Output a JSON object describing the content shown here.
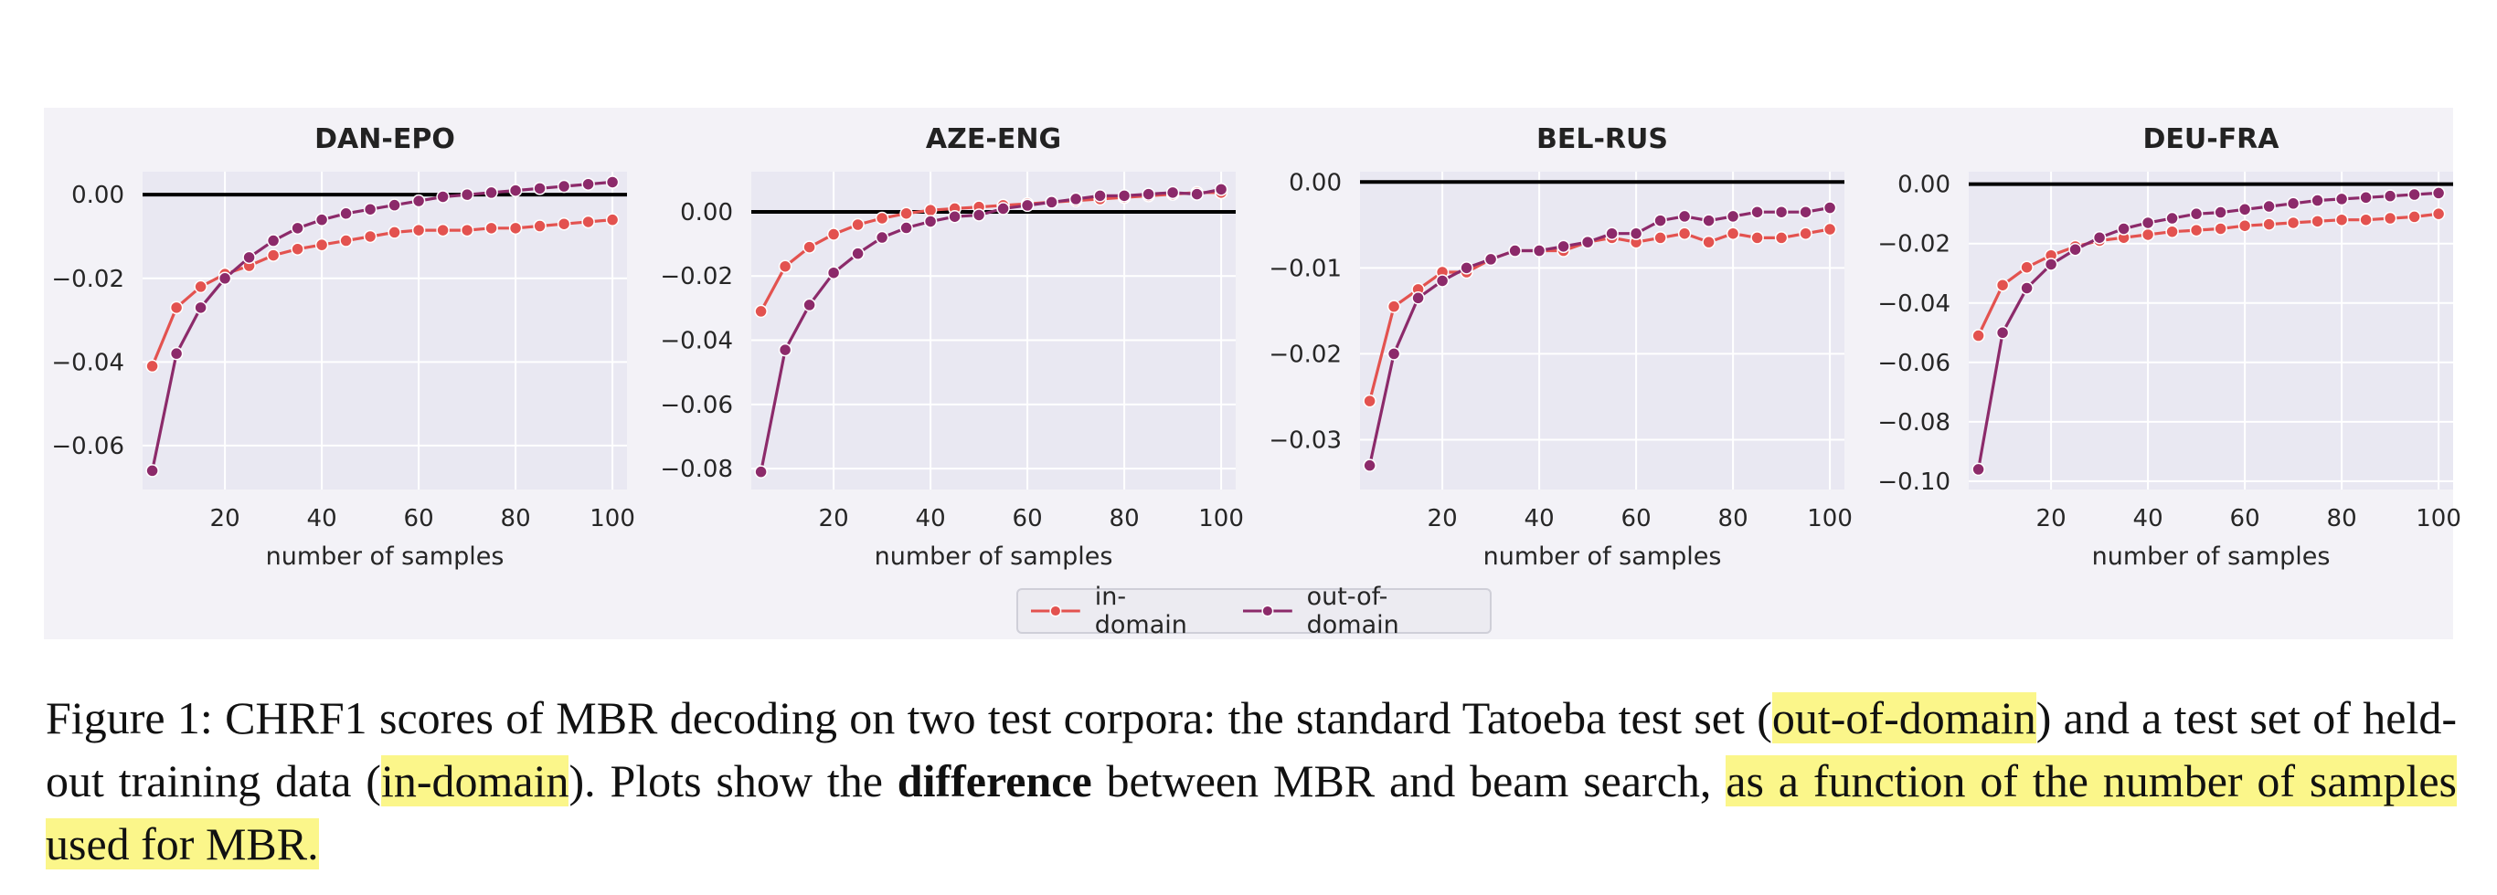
{
  "chart_data": [
    {
      "type": "line",
      "title": "DAN-EPO",
      "xlabel": "number of samples",
      "ylabel": "",
      "xlim": [
        3,
        103
      ],
      "ylim": [
        -0.0705,
        0.0055
      ],
      "xticks": [
        20,
        40,
        60,
        80,
        100
      ],
      "yticks": [
        0.0,
        -0.02,
        -0.04,
        -0.06
      ],
      "ytick_labels": [
        "0.00",
        "−0.02",
        "−0.04",
        "−0.06"
      ],
      "reference_line": 0,
      "grid": true,
      "x": [
        5,
        10,
        15,
        20,
        25,
        30,
        35,
        40,
        45,
        50,
        55,
        60,
        65,
        70,
        75,
        80,
        85,
        90,
        95,
        100
      ],
      "series": [
        {
          "name": "in-domain",
          "values": [
            -0.041,
            -0.027,
            -0.022,
            -0.019,
            -0.017,
            -0.0145,
            -0.013,
            -0.012,
            -0.011,
            -0.01,
            -0.009,
            -0.0085,
            -0.0085,
            -0.0085,
            -0.008,
            -0.008,
            -0.0075,
            -0.007,
            -0.0065,
            -0.006
          ]
        },
        {
          "name": "out-of-domain",
          "values": [
            -0.066,
            -0.038,
            -0.027,
            -0.02,
            -0.015,
            -0.011,
            -0.008,
            -0.006,
            -0.0045,
            -0.0035,
            -0.0025,
            -0.0015,
            -0.0005,
            0.0,
            0.0005,
            0.001,
            0.0015,
            0.002,
            0.0025,
            0.003
          ]
        }
      ]
    },
    {
      "type": "line",
      "title": "AZE-ENG",
      "xlabel": "number of samples",
      "ylabel": "",
      "xlim": [
        3,
        103
      ],
      "ylim": [
        -0.0865,
        0.0125
      ],
      "xticks": [
        20,
        40,
        60,
        80,
        100
      ],
      "yticks": [
        0.0,
        -0.02,
        -0.04,
        -0.06,
        -0.08
      ],
      "ytick_labels": [
        "0.00",
        "−0.02",
        "−0.04",
        "−0.06",
        "−0.08"
      ],
      "reference_line": 0,
      "grid": true,
      "x": [
        5,
        10,
        15,
        20,
        25,
        30,
        35,
        40,
        45,
        50,
        55,
        60,
        65,
        70,
        75,
        80,
        85,
        90,
        95,
        100
      ],
      "series": [
        {
          "name": "in-domain",
          "values": [
            -0.031,
            -0.017,
            -0.011,
            -0.007,
            -0.004,
            -0.002,
            -0.0005,
            0.0005,
            0.001,
            0.0015,
            0.002,
            0.0025,
            0.003,
            0.0035,
            0.004,
            0.0045,
            0.005,
            0.0055,
            0.006,
            0.006
          ]
        },
        {
          "name": "out-of-domain",
          "values": [
            -0.081,
            -0.043,
            -0.029,
            -0.019,
            -0.013,
            -0.008,
            -0.005,
            -0.003,
            -0.0015,
            -0.001,
            0.001,
            0.002,
            0.003,
            0.004,
            0.005,
            0.005,
            0.0055,
            0.006,
            0.0055,
            0.007
          ]
        }
      ]
    },
    {
      "type": "line",
      "title": "BEL-RUS",
      "xlabel": "number of samples",
      "ylabel": "",
      "xlim": [
        3,
        103
      ],
      "ylim": [
        -0.0358,
        0.0012
      ],
      "xticks": [
        20,
        40,
        60,
        80,
        100
      ],
      "yticks": [
        0.0,
        -0.01,
        -0.02,
        -0.03
      ],
      "ytick_labels": [
        "0.00",
        "−0.01",
        "−0.02",
        "−0.03"
      ],
      "reference_line": 0,
      "grid": true,
      "x": [
        5,
        10,
        15,
        20,
        25,
        30,
        35,
        40,
        45,
        50,
        55,
        60,
        65,
        70,
        75,
        80,
        85,
        90,
        95,
        100
      ],
      "series": [
        {
          "name": "in-domain",
          "values": [
            -0.0255,
            -0.0145,
            -0.0125,
            -0.0105,
            -0.0105,
            -0.009,
            -0.008,
            -0.008,
            -0.008,
            -0.007,
            -0.0065,
            -0.007,
            -0.0065,
            -0.006,
            -0.007,
            -0.006,
            -0.0065,
            -0.0065,
            -0.006,
            -0.0055
          ]
        },
        {
          "name": "out-of-domain",
          "values": [
            -0.033,
            -0.02,
            -0.0135,
            -0.0115,
            -0.01,
            -0.009,
            -0.008,
            -0.008,
            -0.0075,
            -0.007,
            -0.006,
            -0.006,
            -0.0045,
            -0.004,
            -0.0045,
            -0.004,
            -0.0035,
            -0.0035,
            -0.0035,
            -0.003
          ]
        }
      ]
    },
    {
      "type": "line",
      "title": "DEU-FRA",
      "xlabel": "number of samples",
      "ylabel": "",
      "xlim": [
        3,
        103
      ],
      "ylim": [
        -0.1028,
        0.0042
      ],
      "xticks": [
        20,
        40,
        60,
        80,
        100
      ],
      "yticks": [
        0.0,
        -0.02,
        -0.04,
        -0.06,
        -0.08,
        -0.1
      ],
      "ytick_labels": [
        "0.00",
        "−0.02",
        "−0.04",
        "−0.06",
        "−0.08",
        "−0.10"
      ],
      "reference_line": 0,
      "grid": true,
      "x": [
        5,
        10,
        15,
        20,
        25,
        30,
        35,
        40,
        45,
        50,
        55,
        60,
        65,
        70,
        75,
        80,
        85,
        90,
        95,
        100
      ],
      "series": [
        {
          "name": "in-domain",
          "values": [
            -0.051,
            -0.034,
            -0.028,
            -0.024,
            -0.021,
            -0.019,
            -0.018,
            -0.017,
            -0.016,
            -0.0155,
            -0.015,
            -0.014,
            -0.0135,
            -0.013,
            -0.0125,
            -0.012,
            -0.012,
            -0.0115,
            -0.011,
            -0.01
          ]
        },
        {
          "name": "out-of-domain",
          "values": [
            -0.096,
            -0.05,
            -0.035,
            -0.027,
            -0.022,
            -0.018,
            -0.015,
            -0.013,
            -0.0115,
            -0.01,
            -0.0095,
            -0.0085,
            -0.0075,
            -0.0065,
            -0.0055,
            -0.005,
            -0.0045,
            -0.004,
            -0.0035,
            -0.003
          ]
        }
      ]
    }
  ],
  "colors": {
    "in_domain": "#e3524f",
    "out_of_domain": "#8c2a6a",
    "plot_background": "#e9e8f2",
    "grid": "#ffffff",
    "reference_line": "#000000"
  },
  "legend": {
    "placement": "bottom-center",
    "items": [
      {
        "label": "in-domain",
        "color": "#e3524f"
      },
      {
        "label": "out-of-domain",
        "color": "#8c2a6a"
      }
    ]
  },
  "caption": {
    "prefix": "Figure 1: CHRF1 scores of MBR decoding on two test corpora: the standard Tatoeba test set (",
    "hl1": "out-of-domain",
    "mid1": ") and a test set of held-out training data (",
    "hl2": "in-domain",
    "mid2": "). Plots show the ",
    "bold": "difference",
    "mid3": " between MBR and beam search, ",
    "hl3": "as a function of the number of samples used for MBR."
  }
}
